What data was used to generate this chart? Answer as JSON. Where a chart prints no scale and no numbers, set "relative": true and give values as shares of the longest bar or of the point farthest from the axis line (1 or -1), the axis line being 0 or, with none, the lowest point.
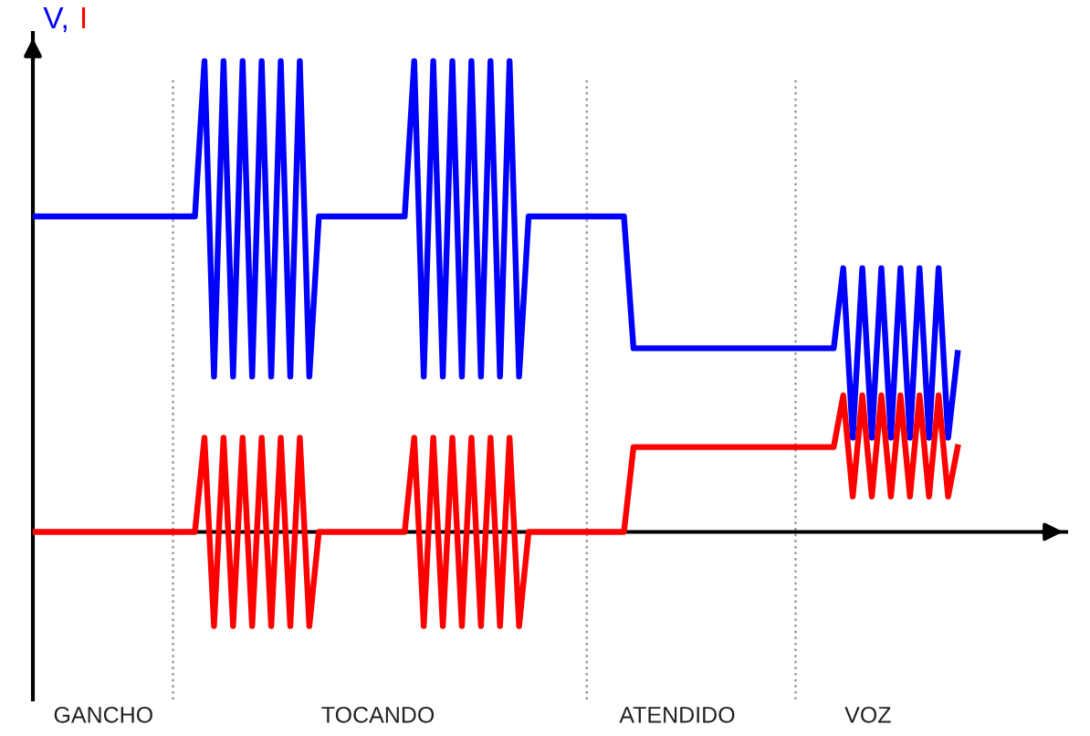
{
  "chart_data": {
    "type": "line",
    "relative": true,
    "legend": "top left",
    "line_style": "solid",
    "categories": [
      null,
      null,
      null,
      null,
      null,
      null,
      null,
      null,
      null,
      null,
      null,
      null,
      null,
      null,
      null,
      null,
      null,
      null,
      null,
      null,
      null,
      null,
      null,
      null,
      null,
      null,
      null,
      null,
      null,
      null,
      null,
      null,
      null,
      null,
      null,
      null,
      null,
      null,
      null,
      null,
      null,
      null,
      null,
      null,
      null,
      null,
      null,
      null,
      null,
      null,
      null,
      null,
      null,
      null,
      null,
      null,
      null,
      null,
      null,
      null,
      null,
      null,
      null,
      null,
      null,
      null,
      null,
      null,
      null,
      null,
      null,
      null,
      null,
      null,
      null,
      null,
      null,
      null,
      null,
      null,
      null,
      null,
      null,
      null,
      null,
      null,
      null,
      null,
      null,
      null,
      null,
      null,
      null,
      null,
      null,
      null,
      null,
      null
    ],
    "series": [
      {
        "name": "V,",
        "color": "#0000ff",
        "values": [
          0.67,
          0.67,
          0.67,
          0.67,
          0.67,
          0.67,
          0.67,
          0.67,
          0.67,
          0.67,
          0.67,
          0.67,
          0.67,
          0.67,
          0.67,
          0.67,
          0.67,
          0.67,
          1.0,
          0.33,
          1.0,
          0.33,
          1.0,
          0.33,
          1.0,
          0.33,
          1.0,
          0.33,
          1.0,
          0.33,
          0.67,
          0.67,
          0.67,
          0.67,
          0.67,
          0.67,
          0.67,
          0.67,
          0.67,
          0.67,
          1.0,
          0.33,
          1.0,
          0.33,
          1.0,
          0.33,
          1.0,
          0.33,
          1.0,
          0.33,
          1.0,
          0.33,
          0.67,
          0.67,
          0.67,
          0.67,
          0.67,
          0.67,
          0.67,
          0.67,
          0.67,
          0.67,
          0.67,
          0.39,
          0.39,
          0.39,
          0.39,
          0.39,
          0.39,
          0.39,
          0.39,
          0.39,
          0.39,
          0.39,
          0.39,
          0.39,
          0.39,
          0.39,
          0.39,
          0.39,
          0.39,
          0.39,
          0.39,
          0.39,
          0.39,
          0.56,
          0.2,
          0.56,
          0.2,
          0.56,
          0.2,
          0.56,
          0.2,
          0.56,
          0.2,
          0.56,
          0.2,
          0.38
        ]
      },
      {
        "name": "I",
        "color": "#ff0000",
        "values": [
          0,
          0,
          0,
          0,
          0,
          0,
          0,
          0,
          0,
          0,
          0,
          0,
          0,
          0,
          0,
          0,
          0,
          0,
          0.2,
          -0.2,
          0.2,
          -0.2,
          0.2,
          -0.2,
          0.2,
          -0.2,
          0.2,
          -0.2,
          0.2,
          -0.2,
          0,
          0,
          0,
          0,
          0,
          0,
          0,
          0,
          0,
          0,
          0.2,
          -0.2,
          0.2,
          -0.2,
          0.2,
          -0.2,
          0.2,
          -0.2,
          0.2,
          -0.2,
          0.2,
          -0.2,
          0,
          0,
          0,
          0,
          0,
          0,
          0,
          0,
          0,
          0,
          0,
          0.18,
          0.18,
          0.18,
          0.18,
          0.18,
          0.18,
          0.18,
          0.18,
          0.18,
          0.18,
          0.18,
          0.18,
          0.18,
          0.18,
          0.18,
          0.18,
          0.18,
          0.18,
          0.18,
          0.18,
          0.18,
          0.18,
          0.29,
          0.075,
          0.29,
          0.075,
          0.29,
          0.075,
          0.29,
          0.075,
          0.29,
          0.075,
          0.29,
          0.075,
          0.18
        ]
      }
    ],
    "annotations": [
      "GANCHO",
      "TOCANDO",
      "ATENDIDO",
      "VOZ"
    ]
  }
}
